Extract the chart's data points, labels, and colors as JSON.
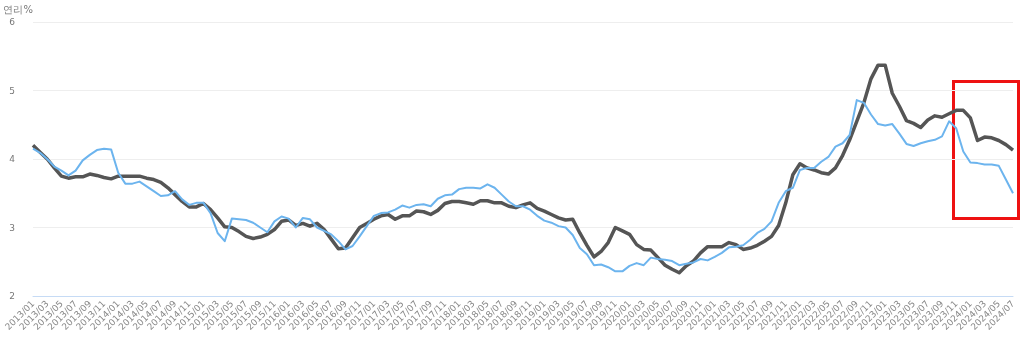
{
  "chart_data": {
    "type": "line",
    "ylabel": "연리%",
    "categories": [
      "2013/01",
      null,
      "2013/03",
      null,
      "2013/05",
      null,
      "2013/07",
      null,
      "2013/09",
      null,
      "2013/11",
      null,
      "2014/01",
      null,
      "2014/03",
      null,
      "2014/05",
      null,
      "2014/07",
      null,
      "2014/09",
      null,
      "2014/11",
      null,
      "2015/01",
      null,
      "2015/03",
      null,
      "2015/05",
      null,
      "2015/07",
      null,
      "2015/09",
      null,
      "2015/11",
      null,
      "2016/01",
      null,
      "2016/03",
      null,
      "2016/05",
      null,
      "2016/07",
      null,
      "2016/09",
      null,
      "2016/11",
      null,
      "2017/01",
      null,
      "2017/03",
      null,
      "2017/05",
      null,
      "2017/07",
      null,
      "2017/09",
      null,
      "2017/11",
      null,
      "2018/01",
      null,
      "2018/03",
      null,
      "2018/05",
      null,
      "2018/07",
      null,
      "2018/09",
      null,
      "2018/11",
      null,
      "2019/01",
      null,
      "2019/03",
      null,
      "2019/05",
      null,
      "2019/07",
      null,
      "2019/09",
      null,
      "2019/11",
      null,
      "2020/01",
      null,
      "2020/03",
      null,
      "2020/05",
      null,
      "2020/07",
      null,
      "2020/09",
      null,
      "2020/11",
      null,
      "2021/01",
      null,
      "2021/03",
      null,
      "2021/05",
      null,
      "2021/07",
      null,
      "2021/09",
      null,
      "2021/11",
      null,
      "2022/01",
      null,
      "2022/03",
      null,
      "2022/05",
      null,
      "2022/07",
      null,
      "2022/09",
      null,
      "2022/11",
      null,
      "2023/01",
      null,
      "2023/03",
      null,
      "2023/05",
      null,
      "2023/07",
      null,
      "2023/09",
      null,
      "2023/11",
      null,
      "2024/01",
      null,
      "2024/03",
      null,
      "2024/05",
      null,
      "2024/07"
    ],
    "series": [
      {
        "color": "#555555",
        "values": [
          4.2,
          4.1,
          4.0,
          3.87,
          3.75,
          3.72,
          3.74,
          3.74,
          3.78,
          3.76,
          3.73,
          3.71,
          3.75,
          3.75,
          3.75,
          3.75,
          3.72,
          3.7,
          3.66,
          3.58,
          3.48,
          3.38,
          3.3,
          3.3,
          3.35,
          3.26,
          3.14,
          3.01,
          3.0,
          2.94,
          2.87,
          2.84,
          2.86,
          2.9,
          2.97,
          3.09,
          3.11,
          3.03,
          3.06,
          3.02,
          3.06,
          2.97,
          2.83,
          2.69,
          2.7,
          2.85,
          3.0,
          3.06,
          3.12,
          3.17,
          3.19,
          3.12,
          3.17,
          3.17,
          3.24,
          3.23,
          3.19,
          3.25,
          3.35,
          3.38,
          3.38,
          3.36,
          3.34,
          3.39,
          3.39,
          3.36,
          3.36,
          3.31,
          3.29,
          3.33,
          3.36,
          3.28,
          3.24,
          3.19,
          3.14,
          3.11,
          3.12,
          2.92,
          2.74,
          2.57,
          2.65,
          2.78,
          3.0,
          2.95,
          2.9,
          2.75,
          2.68,
          2.67,
          2.56,
          2.45,
          2.39,
          2.34,
          2.44,
          2.51,
          2.63,
          2.72,
          2.72,
          2.72,
          2.78,
          2.75,
          2.68,
          2.7,
          2.74,
          2.8,
          2.87,
          3.03,
          3.36,
          3.77,
          3.93,
          3.87,
          3.84,
          3.8,
          3.78,
          3.87,
          4.05,
          4.28,
          4.55,
          4.82,
          5.17,
          5.37,
          5.37,
          4.96,
          4.77,
          4.56,
          4.52,
          4.46,
          4.57,
          4.63,
          4.61,
          4.66,
          4.71,
          4.71,
          4.6,
          4.27,
          4.32,
          4.31,
          4.27,
          4.21,
          4.13
        ]
      },
      {
        "color": "#6cb4ee",
        "values": [
          4.15,
          4.09,
          4.0,
          3.89,
          3.83,
          3.76,
          3.83,
          3.98,
          4.06,
          4.13,
          4.15,
          4.14,
          3.8,
          3.64,
          3.64,
          3.67,
          3.6,
          3.53,
          3.46,
          3.47,
          3.53,
          3.41,
          3.33,
          3.36,
          3.36,
          3.21,
          2.92,
          2.8,
          3.13,
          3.12,
          3.11,
          3.07,
          3.0,
          2.93,
          3.09,
          3.16,
          3.13,
          3.0,
          3.14,
          3.12,
          3.0,
          2.95,
          2.9,
          2.8,
          2.68,
          2.73,
          2.87,
          3.02,
          3.17,
          3.21,
          3.22,
          3.26,
          3.32,
          3.29,
          3.33,
          3.34,
          3.31,
          3.42,
          3.47,
          3.48,
          3.56,
          3.58,
          3.58,
          3.57,
          3.63,
          3.58,
          3.48,
          3.38,
          3.31,
          3.31,
          3.26,
          3.17,
          3.1,
          3.07,
          3.02,
          3.0,
          2.89,
          2.7,
          2.61,
          2.45,
          2.46,
          2.42,
          2.36,
          2.36,
          2.44,
          2.48,
          2.45,
          2.56,
          2.54,
          2.53,
          2.51,
          2.45,
          2.47,
          2.49,
          2.54,
          2.52,
          2.57,
          2.63,
          2.71,
          2.72,
          2.74,
          2.82,
          2.92,
          2.98,
          3.09,
          3.36,
          3.53,
          3.58,
          3.84,
          3.87,
          3.87,
          3.96,
          4.03,
          4.18,
          4.23,
          4.35,
          4.86,
          4.82,
          4.65,
          4.51,
          4.49,
          4.51,
          4.37,
          4.22,
          4.19,
          4.23,
          4.26,
          4.28,
          4.33,
          4.55,
          4.45,
          4.11,
          3.95,
          3.94,
          3.92,
          3.92,
          3.9,
          3.7,
          3.5
        ]
      }
    ],
    "ylim": [
      2,
      6
    ],
    "yticks": [
      2,
      3,
      4,
      5,
      6
    ],
    "grid": "y",
    "marker": "none",
    "line_style": "solid"
  }
}
